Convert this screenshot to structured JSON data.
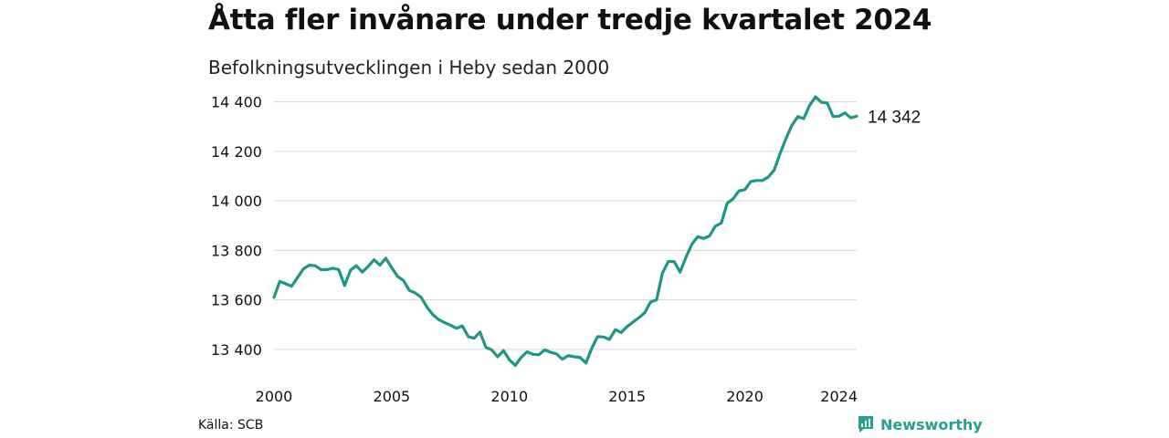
{
  "title": "Åtta fler invånare under tredje kvartalet 2024",
  "subtitle": "Befolkningsutvecklingen i Heby sedan 2000",
  "source": "Källa: SCB",
  "brand": "Newsworthy",
  "colors": {
    "line": "#1f9586",
    "grid": "#d6d6d6",
    "brand": "#27a090"
  },
  "chart_data": {
    "type": "line",
    "title": "Åtta fler invånare under tredje kvartalet 2024",
    "subtitle": "Befolkningsutvecklingen i Heby sedan 2000",
    "xlabel": "",
    "ylabel": "",
    "xlim": [
      2000,
      2024.75
    ],
    "ylim": [
      13300,
      14450
    ],
    "grid": true,
    "x_ticks": [
      2000,
      2005,
      2010,
      2015,
      2020,
      2024
    ],
    "y_ticks": [
      13400,
      13600,
      13800,
      14000,
      14200,
      14400
    ],
    "y_tick_labels": [
      "13 400",
      "13 600",
      "13 800",
      "14 000",
      "14 200",
      "14 400"
    ],
    "end_label": "14 342",
    "series": [
      {
        "x": [
          2000,
          2000.25,
          2000.5,
          2000.75,
          2001,
          2001.25,
          2001.5,
          2001.75,
          2002,
          2002.25,
          2002.5,
          2002.75,
          2003,
          2003.25,
          2003.5,
          2003.75,
          2004,
          2004.25,
          2004.5,
          2004.75,
          2005,
          2005.25,
          2005.5,
          2005.75,
          2006,
          2006.25,
          2006.5,
          2006.75,
          2007,
          2007.25,
          2007.5,
          2007.75,
          2008,
          2008.25,
          2008.5,
          2008.75,
          2009,
          2009.25,
          2009.5,
          2009.75,
          2010,
          2010.25,
          2010.5,
          2010.75,
          2011,
          2011.25,
          2011.5,
          2011.75,
          2012,
          2012.25,
          2012.5,
          2012.75,
          2013,
          2013.25,
          2013.5,
          2013.75,
          2014,
          2014.25,
          2014.5,
          2014.75,
          2015,
          2015.25,
          2015.5,
          2015.75,
          2016,
          2016.25,
          2016.5,
          2016.75,
          2017,
          2017.25,
          2017.5,
          2017.75,
          2018,
          2018.25,
          2018.5,
          2018.75,
          2019,
          2019.25,
          2019.5,
          2019.75,
          2020,
          2020.25,
          2020.5,
          2020.75,
          2021,
          2021.25,
          2021.5,
          2021.75,
          2022,
          2022.25,
          2022.5,
          2022.75,
          2023,
          2023.25,
          2023.5,
          2023.75,
          2024,
          2024.25,
          2024.5,
          2024.75
        ],
        "values": [
          13610,
          13675,
          13665,
          13655,
          13690,
          13725,
          13740,
          13738,
          13722,
          13722,
          13728,
          13722,
          13658,
          13720,
          13738,
          13712,
          13735,
          13762,
          13740,
          13768,
          13730,
          13695,
          13678,
          13638,
          13628,
          13610,
          13570,
          13540,
          13520,
          13508,
          13498,
          13485,
          13495,
          13452,
          13445,
          13470,
          13408,
          13398,
          13370,
          13395,
          13358,
          13335,
          13368,
          13390,
          13380,
          13378,
          13398,
          13388,
          13382,
          13360,
          13375,
          13370,
          13368,
          13345,
          13405,
          13452,
          13450,
          13440,
          13480,
          13468,
          13492,
          13510,
          13528,
          13548,
          13592,
          13600,
          13708,
          13755,
          13755,
          13712,
          13772,
          13825,
          13855,
          13848,
          13858,
          13898,
          13910,
          13990,
          14008,
          14040,
          14045,
          14078,
          14082,
          14082,
          14096,
          14125,
          14192,
          14252,
          14305,
          14340,
          14332,
          14385,
          14420,
          14398,
          14395,
          14340,
          14342,
          14355,
          14335,
          14342
        ]
      }
    ]
  }
}
